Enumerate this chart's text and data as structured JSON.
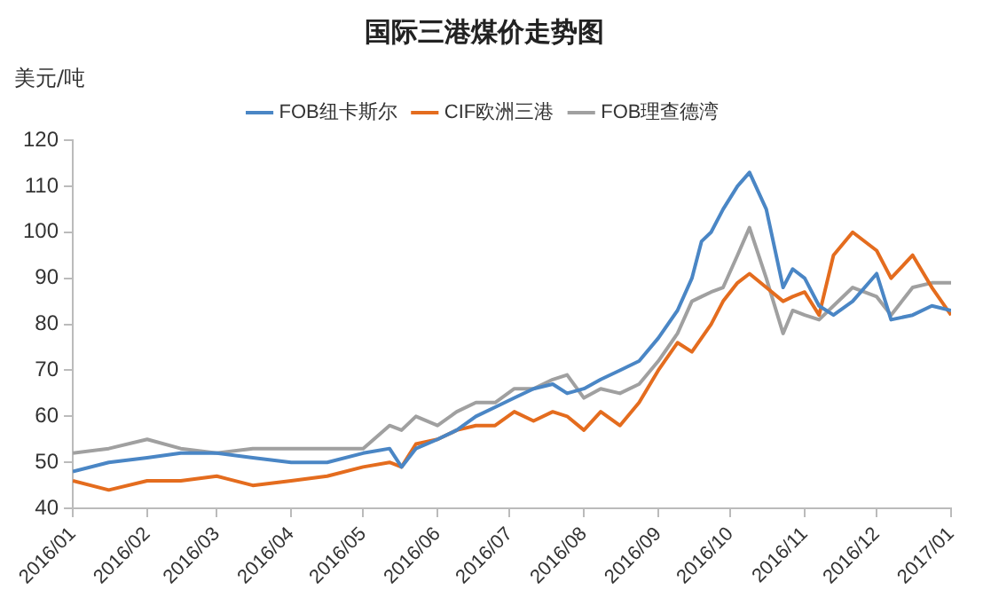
{
  "chart_data": {
    "type": "line",
    "title": "国际三港煤价走势图",
    "ylabel": "美元/吨",
    "x": [
      "2016-01-01",
      "2016-01-16",
      "2016-02-01",
      "2016-02-15",
      "2016-03-01",
      "2016-03-16",
      "2016-04-01",
      "2016-04-16",
      "2016-05-01",
      "2016-05-12",
      "2016-05-17",
      "2016-05-23",
      "2016-06-01",
      "2016-06-09",
      "2016-06-17",
      "2016-06-25",
      "2016-07-03",
      "2016-07-11",
      "2016-07-19",
      "2016-07-25",
      "2016-08-01",
      "2016-08-08",
      "2016-08-16",
      "2016-08-24",
      "2016-09-01",
      "2016-09-09",
      "2016-09-15",
      "2016-09-19",
      "2016-09-23",
      "2016-09-28",
      "2016-10-04",
      "2016-10-09",
      "2016-10-16",
      "2016-10-23",
      "2016-10-27",
      "2016-11-01",
      "2016-11-07",
      "2016-11-13",
      "2016-11-21",
      "2016-12-01",
      "2016-12-07",
      "2016-12-16",
      "2016-12-24",
      "2017-01-01"
    ],
    "series": [
      {
        "name": "FOB纽卡斯尔",
        "color": "#4a86c5",
        "values": [
          48,
          50,
          51,
          52,
          52,
          51,
          50,
          50,
          52,
          53,
          49,
          53,
          55,
          57,
          60,
          62,
          64,
          66,
          67,
          65,
          66,
          68,
          70,
          72,
          77,
          83,
          90,
          98,
          100,
          105,
          110,
          113,
          105,
          88,
          92,
          90,
          84,
          82,
          85,
          91,
          81,
          82,
          84,
          83
        ]
      },
      {
        "name": "CIF欧洲三港",
        "color": "#e46c1e",
        "values": [
          46,
          44,
          46,
          46,
          47,
          45,
          46,
          47,
          49,
          50,
          49,
          54,
          55,
          57,
          58,
          58,
          61,
          59,
          61,
          60,
          57,
          61,
          58,
          63,
          70,
          76,
          74,
          77,
          80,
          85,
          89,
          91,
          88,
          85,
          86,
          87,
          82,
          95,
          100,
          96,
          90,
          95,
          88,
          82
        ]
      },
      {
        "name": "FOB理查德湾",
        "color": "#a0a0a0",
        "values": [
          52,
          53,
          55,
          53,
          52,
          53,
          53,
          53,
          53,
          58,
          57,
          60,
          58,
          61,
          63,
          63,
          66,
          66,
          68,
          69,
          64,
          66,
          65,
          67,
          72,
          78,
          85,
          86,
          87,
          88,
          95,
          101,
          90,
          78,
          83,
          82,
          81,
          84,
          88,
          86,
          82,
          88,
          89,
          89
        ]
      }
    ],
    "xlim": [
      "2016-01-01",
      "2017-01-01"
    ],
    "xticks": [
      {
        "value": "2016-01",
        "label": "2016/01"
      },
      {
        "value": "2016-02",
        "label": "2016/02"
      },
      {
        "value": "2016-03",
        "label": "2016/03"
      },
      {
        "value": "2016-04",
        "label": "2016/04"
      },
      {
        "value": "2016-05",
        "label": "2016/05"
      },
      {
        "value": "2016-06",
        "label": "2016/06"
      },
      {
        "value": "2016-07",
        "label": "2016/07"
      },
      {
        "value": "2016-08",
        "label": "2016/08"
      },
      {
        "value": "2016-09",
        "label": "2016/09"
      },
      {
        "value": "2016-10",
        "label": "2016/10"
      },
      {
        "value": "2016-11",
        "label": "2016/11"
      },
      {
        "value": "2016-12",
        "label": "2016/12"
      },
      {
        "value": "2017-01",
        "label": "2017/01"
      }
    ],
    "ylim": [
      40,
      120
    ],
    "yticks": [
      40,
      50,
      60,
      70,
      80,
      90,
      100,
      110,
      120
    ],
    "grid": false,
    "legend": "top",
    "marker": "none",
    "line_style": "solid"
  }
}
